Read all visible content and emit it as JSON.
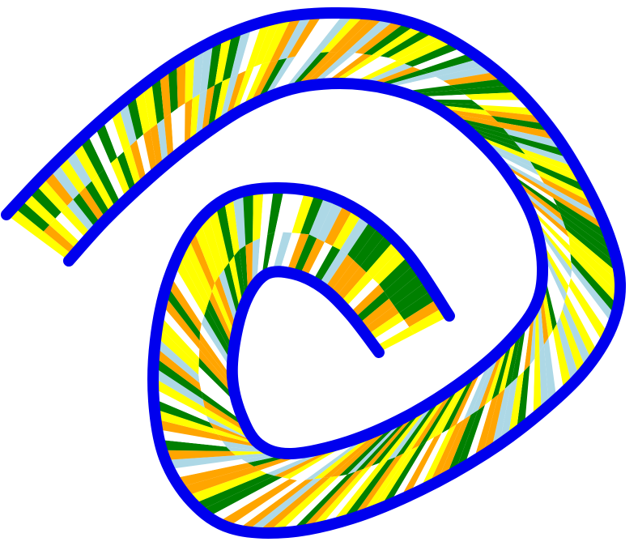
{
  "figure": {
    "description_text": "",
    "colors": {
      "border": "#0000ee",
      "background": "#ffffff",
      "palette": [
        "#008000",
        "#ffa500",
        "#ffff00",
        "#add8e6",
        "#ffffff"
      ]
    },
    "bands": 2,
    "segments": 190
  }
}
